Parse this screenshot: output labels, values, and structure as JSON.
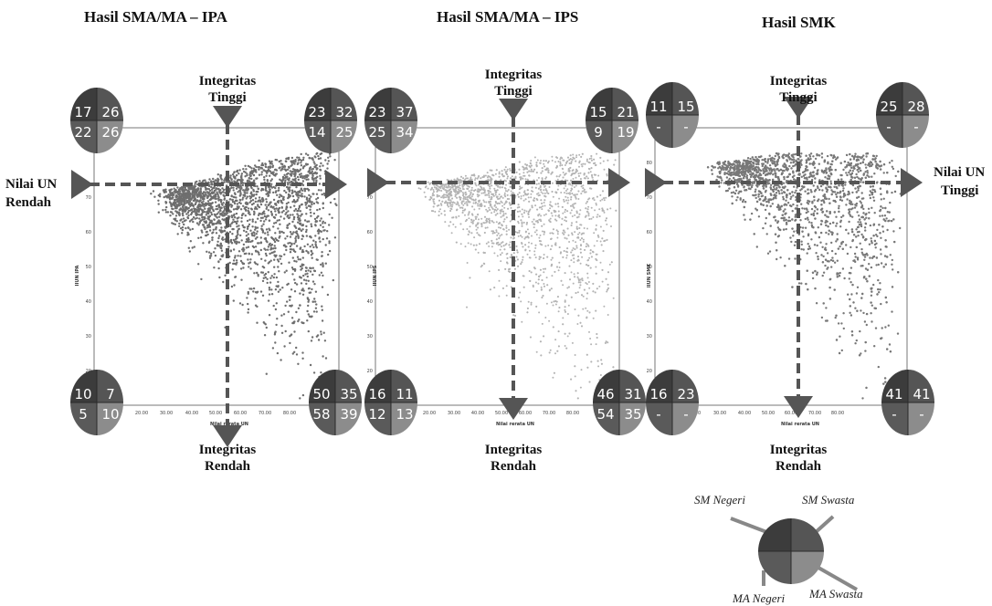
{
  "chart_data": [
    {
      "type": "scatter",
      "title": "Hasil SMA/MA – IPA",
      "xlabel": "Nilai rerata UN",
      "ylabel": "IIUN IPA",
      "xlim": [
        10,
        90
      ],
      "ylim": [
        10,
        90
      ],
      "xticks": [
        "20.00",
        "30.00",
        "40.00",
        "50.00",
        "60.00",
        "70.00",
        "80.00"
      ],
      "yticks": [
        "20",
        "30",
        "40",
        "50",
        "60",
        "70"
      ],
      "point_color": "#6e6e6e",
      "quadrants": {
        "top_left": [
          "17",
          "26",
          "22",
          "26"
        ],
        "top_right": [
          "23",
          "32",
          "14",
          "25"
        ],
        "bottom_left": [
          "10",
          "7",
          "5",
          "10"
        ],
        "bottom_right": [
          "50",
          "35",
          "58",
          "39"
        ]
      }
    },
    {
      "type": "scatter",
      "title": "Hasil SMA/MA – IPS",
      "xlabel": "Nilai rerata UN",
      "ylabel": "IIUN IPS",
      "xlim": [
        10,
        90
      ],
      "ylim": [
        10,
        90
      ],
      "xticks": [
        "20.00",
        "30.00",
        "40.00",
        "50.00",
        "60.00",
        "70.00",
        "80.00"
      ],
      "yticks": [
        "20",
        "30",
        "40",
        "50",
        "60",
        "70"
      ],
      "point_color": "#b4b4b4",
      "quadrants": {
        "top_left": [
          "23",
          "37",
          "25",
          "34"
        ],
        "top_right": [
          "15",
          "21",
          "9",
          "19"
        ],
        "bottom_left": [
          "16",
          "11",
          "12",
          "13"
        ],
        "bottom_right": [
          "46",
          "31",
          "54",
          "35"
        ]
      }
    },
    {
      "type": "scatter",
      "title": "Hasil SMK",
      "xlabel": "Nilai rerata UN",
      "ylabel": "IIUN SMK",
      "xlim": [
        10,
        90
      ],
      "ylim": [
        10,
        90
      ],
      "xticks": [
        "20.00",
        "30.00",
        "40.00",
        "50.00",
        "60.00",
        "70.00",
        "80.00"
      ],
      "yticks": [
        "20",
        "30",
        "40",
        "50",
        "60",
        "70",
        "80"
      ],
      "point_color": "#787878",
      "quadrants": {
        "top_left": [
          "11",
          "15",
          "-",
          "-"
        ],
        "top_right": [
          "25",
          "28",
          "-",
          "-"
        ],
        "bottom_left": [
          "16",
          "23",
          "-",
          "-"
        ],
        "bottom_right": [
          "41",
          "41",
          "-",
          "-"
        ]
      }
    }
  ],
  "annotations": {
    "integritas_tinggi": [
      "Integritas",
      "Tinggi"
    ],
    "integritas_rendah": [
      "Integritas",
      "Rendah"
    ],
    "nilai_un_rendah": [
      "Nilai UN",
      "Rendah"
    ],
    "nilai_un_tinggi": [
      "Nilai UN",
      "Tinggi"
    ]
  },
  "legend": {
    "top_left": "SM Negeri",
    "top_right": "SM Swasta",
    "bottom_left": "MA Negeri",
    "bottom_right": "MA Swasta"
  },
  "colors": {
    "quad_top_left": "#3c3c3c",
    "quad_top_right": "#555555",
    "quad_bottom_left": "#5a5a5a",
    "quad_bottom_right": "#8c8c8c",
    "dashed_arrow": "#555555",
    "frame": "#777777"
  }
}
